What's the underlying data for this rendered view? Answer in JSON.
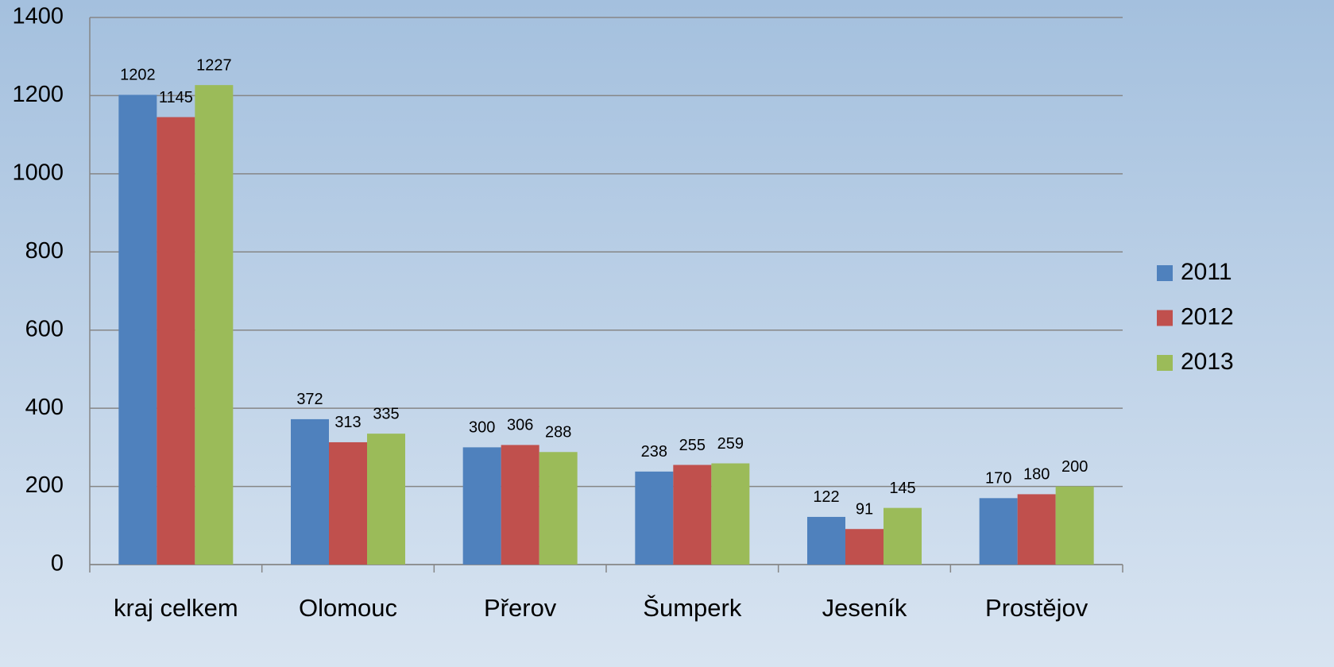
{
  "chart_data": {
    "type": "bar",
    "categories": [
      "kraj celkem",
      "Olomouc",
      "Přerov",
      "Šumperk",
      "Jeseník",
      "Prostějov"
    ],
    "series": [
      {
        "name": "2011",
        "color": "#4f81bd",
        "values": [
          1202,
          372,
          300,
          238,
          122,
          170
        ]
      },
      {
        "name": "2012",
        "color": "#c0504d",
        "values": [
          1145,
          313,
          306,
          255,
          91,
          180
        ]
      },
      {
        "name": "2013",
        "color": "#9bbb59",
        "values": [
          1227,
          335,
          288,
          259,
          145,
          200
        ]
      }
    ],
    "ylim": [
      0,
      1400
    ],
    "yticks": [
      0,
      200,
      400,
      600,
      800,
      1000,
      1200,
      1400
    ],
    "grid": true,
    "legend": "right"
  }
}
